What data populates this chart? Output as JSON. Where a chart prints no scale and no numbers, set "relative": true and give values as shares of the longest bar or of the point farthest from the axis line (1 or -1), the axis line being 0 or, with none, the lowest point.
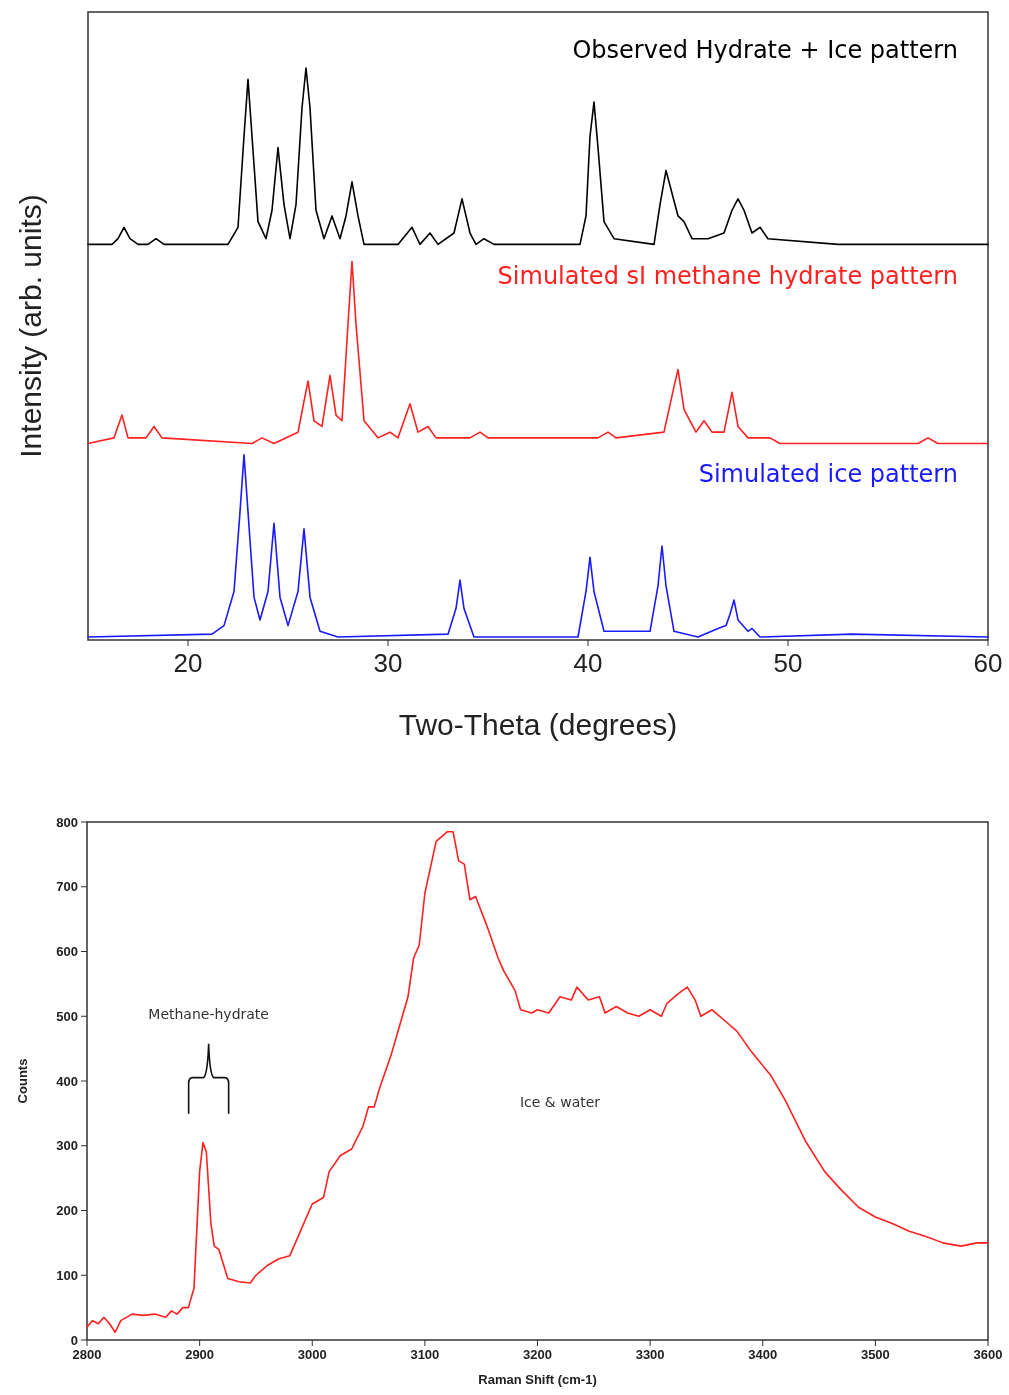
{
  "chart_data": [
    {
      "type": "line",
      "relative": true,
      "xlabel": "Two-Theta (degrees)",
      "ylabel": "Intensity (arb. units)",
      "xlim": [
        15,
        60
      ],
      "xticks": [
        20,
        30,
        40,
        50,
        60
      ],
      "series": [
        {
          "name": "Observed Hydrate + Ice pattern",
          "color": "#000000",
          "x": [
            15,
            16.2,
            16.5,
            16.8,
            17.1,
            17.5,
            18.0,
            18.4,
            18.8,
            22.0,
            22.5,
            22.8,
            23.0,
            23.2,
            23.5,
            23.9,
            24.2,
            24.5,
            24.8,
            25.1,
            25.4,
            25.7,
            25.9,
            26.1,
            26.4,
            26.8,
            27.2,
            27.6,
            27.9,
            28.2,
            28.5,
            28.8,
            30.5,
            31.2,
            31.6,
            32.1,
            32.5,
            33.3,
            33.7,
            34.1,
            34.4,
            34.8,
            35.3,
            39.6,
            39.9,
            40.1,
            40.3,
            40.5,
            40.8,
            41.3,
            43.3,
            43.6,
            43.9,
            44.2,
            44.5,
            44.8,
            45.2,
            46.0,
            46.8,
            47.2,
            47.5,
            47.8,
            48.2,
            48.6,
            49.0,
            52.5,
            53.2,
            55,
            60
          ],
          "values": [
            0.69,
            0.69,
            0.7,
            0.72,
            0.7,
            0.69,
            0.69,
            0.7,
            0.69,
            0.69,
            0.72,
            0.88,
            0.98,
            0.88,
            0.73,
            0.7,
            0.75,
            0.86,
            0.76,
            0.7,
            0.76,
            0.93,
            1.0,
            0.93,
            0.75,
            0.7,
            0.74,
            0.7,
            0.74,
            0.8,
            0.74,
            0.69,
            0.69,
            0.72,
            0.69,
            0.71,
            0.69,
            0.71,
            0.77,
            0.71,
            0.69,
            0.7,
            0.69,
            0.69,
            0.74,
            0.88,
            0.94,
            0.86,
            0.73,
            0.7,
            0.69,
            0.76,
            0.82,
            0.78,
            0.74,
            0.73,
            0.7,
            0.7,
            0.71,
            0.75,
            0.77,
            0.75,
            0.71,
            0.72,
            0.7,
            0.69,
            0.69,
            0.69,
            0.69
          ]
        },
        {
          "name": "Simulated sI methane hydrate pattern",
          "color": "#ff2020",
          "x": [
            15,
            16.3,
            16.7,
            17.0,
            17.9,
            18.3,
            18.7,
            23.2,
            23.7,
            24.3,
            25.5,
            26.0,
            26.3,
            26.7,
            27.1,
            27.4,
            27.7,
            28.0,
            28.2,
            28.4,
            28.8,
            29.5,
            30.1,
            30.5,
            31.1,
            31.5,
            32.0,
            32.4,
            34.1,
            34.6,
            35.0,
            35.5,
            37.5,
            40.5,
            41.0,
            41.4,
            43.8,
            44.3,
            44.5,
            44.8,
            45.1,
            45.4,
            45.8,
            46.2,
            46.8,
            47.2,
            47.5,
            48.0,
            48.4,
            49.1,
            49.6,
            56.5,
            57,
            57.5,
            60
          ],
          "values": [
            0.34,
            0.35,
            0.39,
            0.35,
            0.35,
            0.37,
            0.35,
            0.34,
            0.35,
            0.34,
            0.36,
            0.45,
            0.38,
            0.37,
            0.46,
            0.39,
            0.38,
            0.55,
            0.66,
            0.55,
            0.38,
            0.35,
            0.36,
            0.35,
            0.41,
            0.36,
            0.37,
            0.35,
            0.35,
            0.36,
            0.35,
            0.35,
            0.35,
            0.35,
            0.36,
            0.35,
            0.36,
            0.44,
            0.47,
            0.4,
            0.38,
            0.36,
            0.38,
            0.36,
            0.36,
            0.43,
            0.37,
            0.35,
            0.35,
            0.35,
            0.34,
            0.34,
            0.35,
            0.34,
            0.34
          ]
        },
        {
          "name": "Simulated ice pattern",
          "color": "#1a1aff",
          "x": [
            15,
            21.2,
            21.8,
            22.3,
            22.6,
            22.8,
            23.0,
            23.3,
            23.6,
            24.0,
            24.3,
            24.6,
            25.0,
            25.5,
            25.8,
            26.1,
            26.6,
            27.5,
            33.0,
            33.4,
            33.6,
            33.8,
            34.3,
            39.5,
            39.9,
            40.1,
            40.3,
            40.8,
            43.1,
            43.5,
            43.7,
            43.9,
            44.3,
            45.5,
            46.5,
            46.9,
            47.1,
            47.3,
            47.5,
            48.0,
            48.2,
            48.6,
            53.2,
            60
          ],
          "values": [
            0,
            0.005,
            0.02,
            0.08,
            0.22,
            0.32,
            0.22,
            0.07,
            0.03,
            0.08,
            0.2,
            0.07,
            0.02,
            0.08,
            0.19,
            0.07,
            0.01,
            0,
            0.005,
            0.05,
            0.1,
            0.05,
            0,
            0,
            0.08,
            0.14,
            0.08,
            0.01,
            0.01,
            0.09,
            0.16,
            0.09,
            0.01,
            0,
            0.015,
            0.02,
            0.04,
            0.065,
            0.03,
            0.01,
            0.015,
            0,
            0.005,
            0
          ]
        }
      ]
    },
    {
      "type": "line",
      "xlabel": "Raman Shift (cm-1)",
      "ylabel": "Counts",
      "xlim": [
        2800,
        3600
      ],
      "xticks": [
        2800,
        2900,
        3000,
        3100,
        3200,
        3300,
        3400,
        3500,
        3600
      ],
      "ylim": [
        0,
        800
      ],
      "yticks": [
        0,
        100,
        200,
        300,
        400,
        500,
        600,
        700,
        800
      ],
      "annotations": [
        "Methane-hydrate",
        "Ice & water"
      ],
      "series": [
        {
          "color": "#ff2020",
          "x": [
            2800,
            2805,
            2810,
            2815,
            2820,
            2825,
            2830,
            2840,
            2850,
            2860,
            2870,
            2875,
            2880,
            2885,
            2890,
            2895,
            2900,
            2903,
            2906,
            2910,
            2913,
            2917,
            2925,
            2935,
            2945,
            2950,
            2960,
            2970,
            2980,
            2990,
            3000,
            3010,
            3015,
            3025,
            3035,
            3045,
            3050,
            3055,
            3060,
            3070,
            3080,
            3085,
            3090,
            3095,
            3100,
            3105,
            3110,
            3120,
            3125,
            3130,
            3135,
            3140,
            3145,
            3155,
            3165,
            3170,
            3180,
            3185,
            3195,
            3200,
            3210,
            3220,
            3230,
            3235,
            3245,
            3255,
            3260,
            3270,
            3280,
            3290,
            3300,
            3310,
            3315,
            3325,
            3333,
            3340,
            3345,
            3355,
            3365,
            3377,
            3390,
            3407,
            3420,
            3438,
            3455,
            3469,
            3485,
            3500,
            3515,
            3530,
            3545,
            3560,
            3576,
            3590,
            3600
          ],
          "values": [
            20,
            30,
            25,
            35,
            25,
            12,
            30,
            40,
            38,
            40,
            35,
            45,
            40,
            50,
            50,
            80,
            260,
            305,
            290,
            180,
            145,
            140,
            95,
            90,
            88,
            100,
            115,
            125,
            130,
            170,
            210,
            220,
            260,
            285,
            295,
            330,
            360,
            360,
            390,
            440,
            500,
            530,
            590,
            610,
            690,
            730,
            770,
            785,
            785,
            740,
            735,
            680,
            685,
            640,
            590,
            570,
            540,
            510,
            505,
            510,
            505,
            530,
            525,
            545,
            525,
            530,
            505,
            515,
            505,
            500,
            510,
            500,
            520,
            535,
            545,
            525,
            500,
            510,
            495,
            477,
            445,
            409,
            370,
            307,
            260,
            233,
            205,
            190,
            180,
            168,
            160,
            150,
            145,
            150,
            150
          ]
        }
      ]
    }
  ]
}
